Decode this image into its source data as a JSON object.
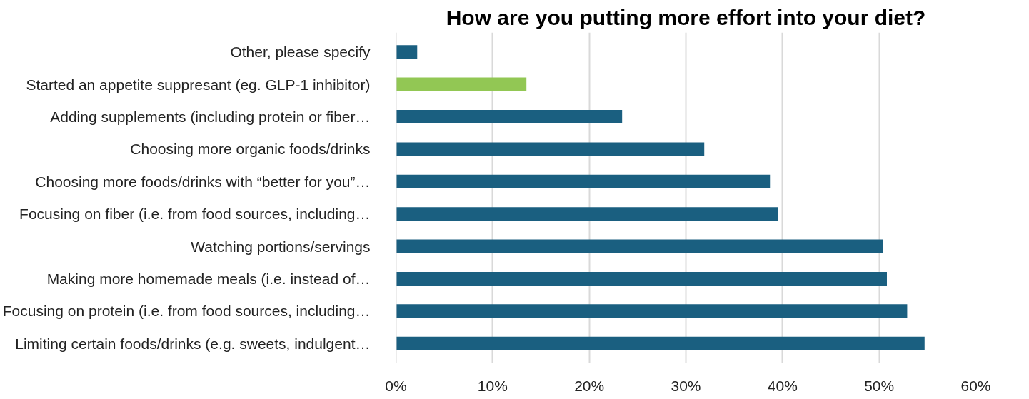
{
  "chart_data": {
    "type": "bar",
    "orientation": "horizontal",
    "title": "How are you putting more effort into your diet?",
    "categories": [
      "Other, please specify",
      "Started an appetite suppresant (eg. GLP-1 inhibitor)",
      "Adding supplements (including protein or fiber…",
      "Choosing more organic foods/drinks",
      "Choosing more foods/drinks with “better for you”…",
      "Focusing on fiber (i.e. from food sources, including…",
      "Watching portions/servings",
      "Making more homemade meals (i.e. instead of…",
      "Focusing on protein (i.e. from food sources, including…",
      "Limiting certain foods/drinks (e.g. sweets, indulgent…"
    ],
    "values": [
      2.2,
      13.5,
      23.4,
      31.9,
      38.7,
      39.5,
      50.4,
      50.8,
      52.9,
      54.7
    ],
    "colors": [
      "#1a5f80",
      "#92c754",
      "#1a5f80",
      "#1a5f80",
      "#1a5f80",
      "#1a5f80",
      "#1a5f80",
      "#1a5f80",
      "#1a5f80",
      "#1a5f80"
    ],
    "xlim": [
      0,
      60
    ],
    "xticks": [
      {
        "value": 0,
        "label": "0%"
      },
      {
        "value": 10,
        "label": "10%"
      },
      {
        "value": 20,
        "label": "20%"
      },
      {
        "value": 30,
        "label": "30%"
      },
      {
        "value": 40,
        "label": "40%"
      },
      {
        "value": 50,
        "label": "50%"
      },
      {
        "value": 60,
        "label": "60%"
      }
    ],
    "grid": "x"
  }
}
